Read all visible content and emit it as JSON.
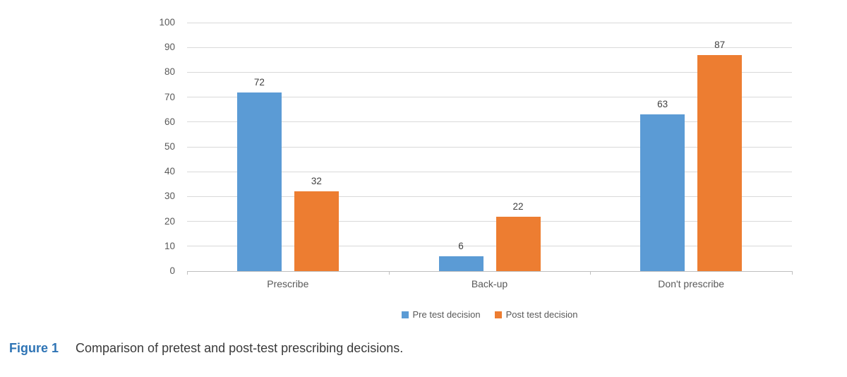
{
  "figure": {
    "caption_label": "Figure 1",
    "caption_text": "Comparison of pretest and post-test prescribing decisions."
  },
  "chart_data": {
    "type": "bar",
    "title": "",
    "categories": [
      "Prescribe",
      "Back-up",
      "Don't prescribe"
    ],
    "series": [
      {
        "name": "Pre test decision",
        "color": "#5B9BD5",
        "values": [
          72,
          6,
          63
        ]
      },
      {
        "name": "Post test decision",
        "color": "#ED7D31",
        "values": [
          32,
          22,
          87
        ]
      }
    ],
    "xlabel": "",
    "ylabel": "",
    "ylim": [
      0,
      100
    ],
    "yticks": [
      0,
      10,
      20,
      30,
      40,
      50,
      60,
      70,
      80,
      90,
      100
    ],
    "grid": true,
    "data_labels_shown": true,
    "legend_position": "bottom"
  },
  "colors": {
    "background": "#FFFFFF",
    "gridline": "#D9D9D9",
    "axis_line": "#BFBFBF",
    "axis_tick_label": "#595959",
    "category_label": "#595959",
    "value_label": "#404040",
    "legend_text": "#595959",
    "caption_label_blue": "#2E74B5",
    "caption_text": "#3A3A3A"
  }
}
